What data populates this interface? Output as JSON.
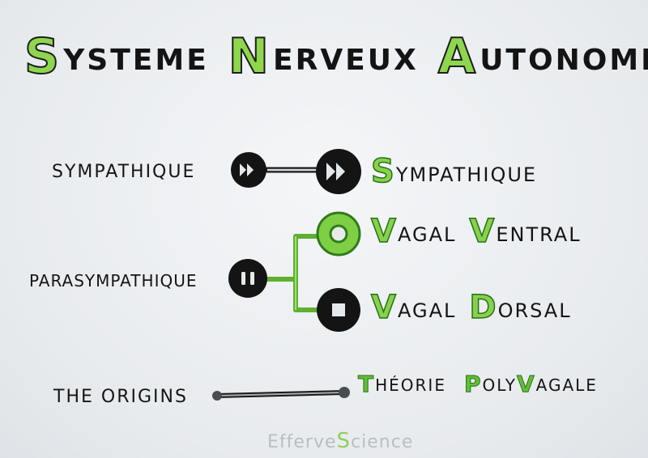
{
  "title": {
    "words": [
      {
        "cap": "S",
        "rest": "ysteme"
      },
      {
        "cap": "N",
        "rest": "erveux"
      },
      {
        "cap": "A",
        "rest": "utonome"
      }
    ]
  },
  "branches": {
    "sympathique": {
      "left_label": "Sympathique",
      "right": {
        "cap": "S",
        "rest": "ympathique"
      }
    },
    "parasympathique": {
      "left_label": "Parasympathique",
      "ventral": [
        {
          "cap": "V",
          "rest": "agal"
        },
        {
          "cap": "V",
          "rest": "entral"
        }
      ],
      "dorsal": [
        {
          "cap": "V",
          "rest": "agal"
        },
        {
          "cap": "D",
          "rest": "orsal"
        }
      ]
    },
    "origins": {
      "left_label": "The origins",
      "right": [
        {
          "cap": "T",
          "rest": "héorie"
        },
        {
          "cap": "P",
          "rest": "oly",
          "cap2": "V",
          "rest2": "agale"
        }
      ]
    }
  },
  "logo": {
    "pre": "Efferve",
    "accent": "S",
    "post": "cience"
  },
  "colors": {
    "green": "#86d24a",
    "ink": "#151515",
    "node": "#141414",
    "line_green": "#6cbf3a"
  },
  "icons": [
    "fast-forward-icon",
    "pause-icon",
    "ring-icon",
    "stop-icon"
  ]
}
